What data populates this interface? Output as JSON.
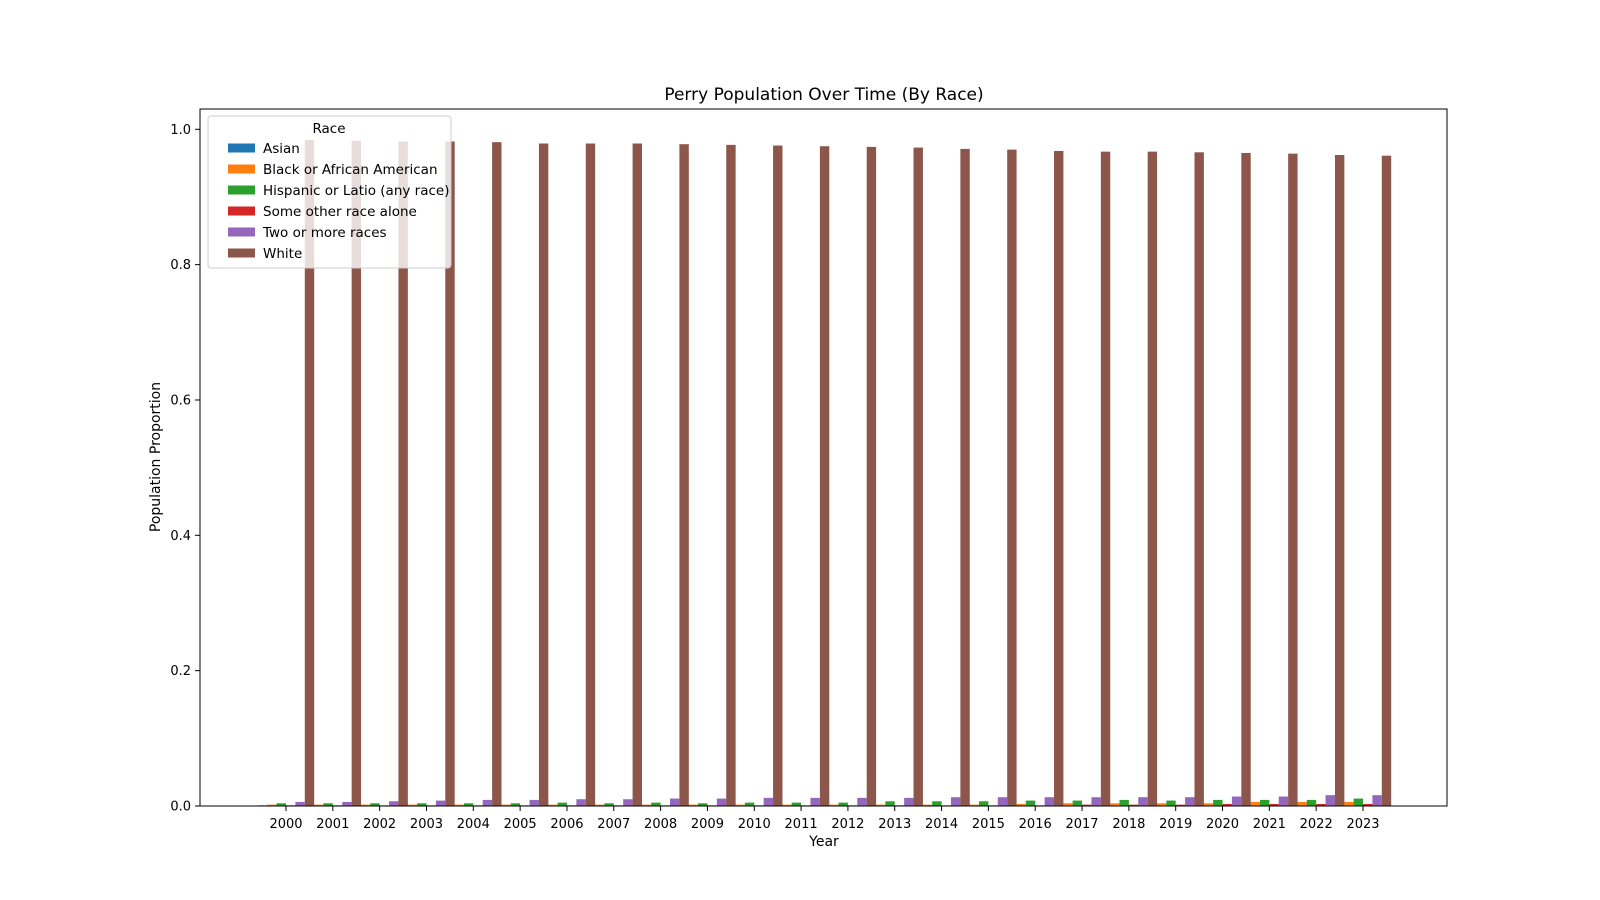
{
  "chart_data": {
    "type": "bar",
    "title": "Perry Population Over Time (By Race)",
    "xlabel": "Year",
    "ylabel": "Population Proportion",
    "ylim": [
      0,
      1.03
    ],
    "yticks": [
      0.0,
      0.2,
      0.4,
      0.6,
      0.8,
      1.0
    ],
    "ytick_labels": [
      "0.0",
      "0.2",
      "0.4",
      "0.6",
      "0.8",
      "1.0"
    ],
    "categories": [
      "2000",
      "2001",
      "2002",
      "2003",
      "2004",
      "2005",
      "2006",
      "2007",
      "2008",
      "2009",
      "2010",
      "2011",
      "2012",
      "2013",
      "2014",
      "2015",
      "2016",
      "2017",
      "2018",
      "2019",
      "2020",
      "2021",
      "2022",
      "2023"
    ],
    "legend": {
      "title": "Race",
      "placement": "upper left"
    },
    "grid": false,
    "series": [
      {
        "name": "Asian",
        "color": "#1f77b4",
        "values": [
          0.001,
          0.001,
          0.001,
          0.001,
          0.001,
          0.001,
          0.001,
          0.001,
          0.001,
          0.001,
          0.001,
          0.001,
          0.001,
          0.001,
          0.001,
          0.001,
          0.001,
          0.001,
          0.001,
          0.001,
          0.001,
          0.001,
          0.001,
          0.001
        ]
      },
      {
        "name": "Black or African American",
        "color": "#ff7f0e",
        "values": [
          0.002,
          0.002,
          0.002,
          0.002,
          0.002,
          0.002,
          0.002,
          0.002,
          0.002,
          0.002,
          0.002,
          0.002,
          0.002,
          0.002,
          0.002,
          0.002,
          0.003,
          0.004,
          0.004,
          0.004,
          0.004,
          0.006,
          0.006,
          0.006
        ]
      },
      {
        "name": "Hispanic or Latio (any race)",
        "color": "#2ca02c",
        "values": [
          0.004,
          0.004,
          0.004,
          0.004,
          0.004,
          0.004,
          0.005,
          0.004,
          0.005,
          0.004,
          0.005,
          0.005,
          0.005,
          0.007,
          0.007,
          0.007,
          0.008,
          0.008,
          0.009,
          0.008,
          0.009,
          0.009,
          0.009,
          0.011
        ]
      },
      {
        "name": "Some other race alone",
        "color": "#d62728",
        "values": [
          0.001,
          0.001,
          0.001,
          0.001,
          0.001,
          0.001,
          0.001,
          0.001,
          0.001,
          0.001,
          0.001,
          0.001,
          0.001,
          0.001,
          0.001,
          0.001,
          0.001,
          0.002,
          0.002,
          0.002,
          0.003,
          0.003,
          0.003,
          0.003
        ]
      },
      {
        "name": "Two or more races",
        "color": "#9467bd",
        "values": [
          0.006,
          0.006,
          0.007,
          0.008,
          0.009,
          0.009,
          0.01,
          0.01,
          0.011,
          0.011,
          0.012,
          0.012,
          0.012,
          0.012,
          0.013,
          0.013,
          0.013,
          0.013,
          0.013,
          0.013,
          0.014,
          0.014,
          0.016,
          0.016
        ]
      },
      {
        "name": "White",
        "color": "#8c564b",
        "values": [
          0.984,
          0.983,
          0.982,
          0.982,
          0.981,
          0.979,
          0.979,
          0.979,
          0.978,
          0.977,
          0.976,
          0.975,
          0.974,
          0.973,
          0.971,
          0.97,
          0.968,
          0.967,
          0.967,
          0.966,
          0.965,
          0.964,
          0.962,
          0.961
        ]
      }
    ]
  }
}
